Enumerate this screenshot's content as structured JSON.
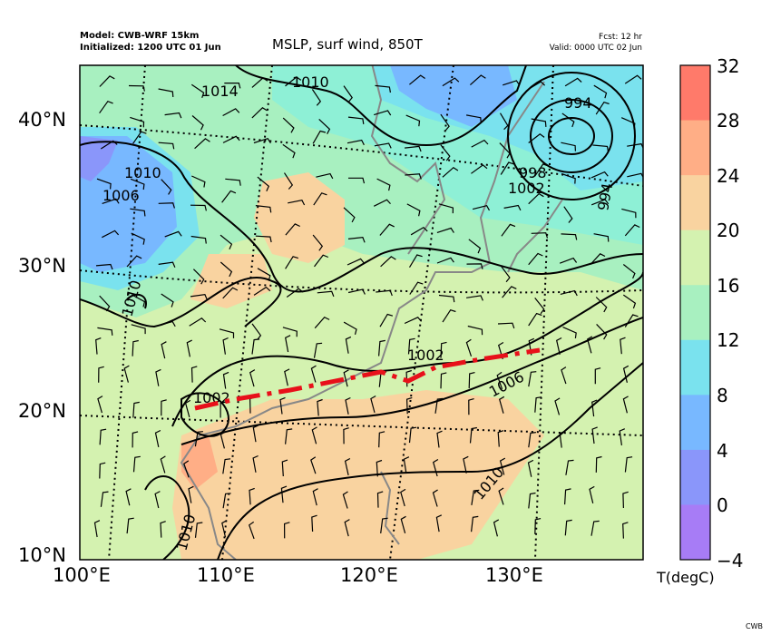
{
  "header": {
    "model": "Model: CWB-WRF 15km",
    "initialized": "Initialized: 1200 UTC 01 Jun",
    "title": "MSLP, surf wind, 850T",
    "forecast": "Fcst: 12 hr",
    "valid": "Valid: 0000 UTC 02 Jun"
  },
  "axes": {
    "lat_labels": [
      "40°N",
      "30°N",
      "20°N",
      "10°N"
    ],
    "lon_labels": [
      "100°E",
      "110°E",
      "120°E",
      "130°E"
    ]
  },
  "colorbar": {
    "label": "T(degC)",
    "ticks": [
      "32",
      "28",
      "24",
      "20",
      "16",
      "12",
      "8",
      "4",
      "0",
      "−4"
    ],
    "colors": [
      "#ff7a6a",
      "#ffae86",
      "#f9d3a0",
      "#d4f2b0",
      "#a8f0c0",
      "#8ef0d6",
      "#7ae2ee",
      "#78b8ff",
      "#8a96fa",
      "#a77cf6"
    ]
  },
  "isobars": {
    "labels": [
      "1014",
      "1010",
      "994",
      "998",
      "1002",
      "1010",
      "1006",
      "1010",
      "1002",
      "1002",
      "1006",
      "1010",
      "1010",
      "994"
    ]
  },
  "front": {
    "color": "#e8101a"
  },
  "credit": "CWB"
}
